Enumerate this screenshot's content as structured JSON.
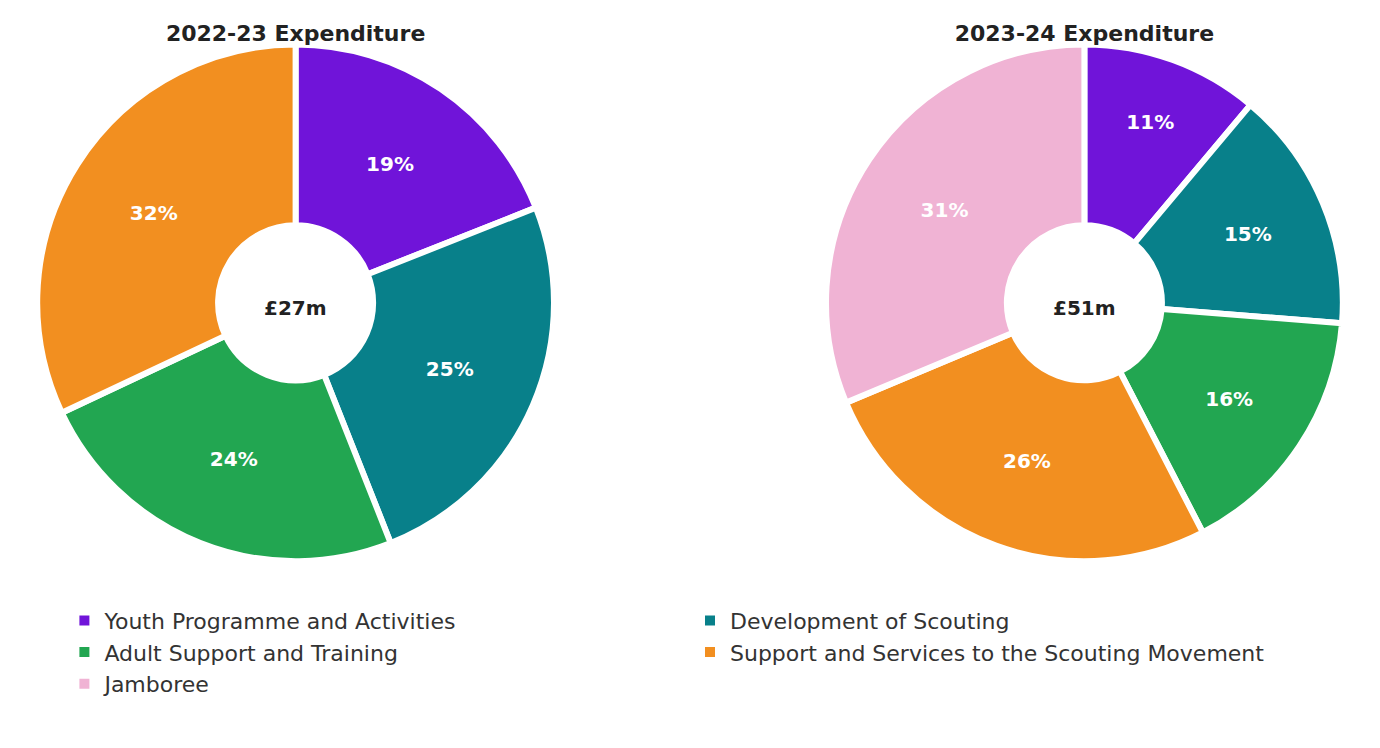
{
  "chart_data": [
    {
      "type": "pie",
      "title": "2022-23 Expenditure",
      "categories": [
        "Youth Programme and Activities",
        "Development of Scouting",
        "Adult Support and Training",
        "Support and Services to the Scouting Movement"
      ],
      "values": [
        19,
        25,
        24,
        32
      ],
      "value_labels": [
        "19%",
        "25%",
        "24%",
        "32%"
      ],
      "colors": [
        "#7014d9",
        "#08808a",
        "#22a651",
        "#f28f20"
      ],
      "annotations": [
        "£27m"
      ],
      "data_labels": true,
      "legend": "bottom"
    },
    {
      "type": "pie",
      "title": "2023-24 Expenditure",
      "categories": [
        "Youth Programme and Activities",
        "Development of Scouting",
        "Adult Support and Training",
        "Support and Services to the Scouting Movement",
        "Jamboree"
      ],
      "values": [
        11,
        15,
        16,
        26,
        31
      ],
      "value_labels": [
        "11%",
        "15%",
        "16%",
        "26%",
        "31%"
      ],
      "colors": [
        "#7014d9",
        "#08808a",
        "#22a651",
        "#f28f20",
        "#f0b3d4"
      ],
      "annotations": [
        "£51m"
      ],
      "data_labels": true,
      "legend": "bottom"
    }
  ]
}
